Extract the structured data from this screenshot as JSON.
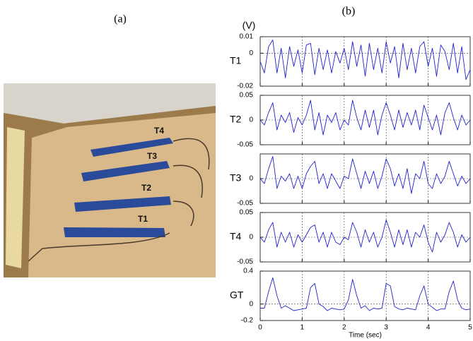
{
  "panel_a": {
    "label": "(a)",
    "sensor_labels": [
      "T4",
      "T3",
      "T2",
      "T1"
    ]
  },
  "panel_b": {
    "label": "(b)",
    "unit": "(V)"
  },
  "chart_data": [
    {
      "type": "line",
      "ylabel": "T1",
      "xlim": [
        0,
        5
      ],
      "xticks": [
        0,
        1,
        2,
        3,
        4,
        5
      ],
      "ylim": [
        -0.02,
        0.01
      ],
      "yticks": [
        -0.02,
        0,
        0.01
      ],
      "grid": true,
      "x": [
        0,
        0.1,
        0.2,
        0.3,
        0.4,
        0.5,
        0.6,
        0.7,
        0.8,
        0.9,
        1,
        1.1,
        1.2,
        1.3,
        1.4,
        1.5,
        1.6,
        1.7,
        1.8,
        1.9,
        2,
        2.1,
        2.2,
        2.3,
        2.4,
        2.5,
        2.6,
        2.7,
        2.8,
        2.9,
        3,
        3.1,
        3.2,
        3.3,
        3.4,
        3.5,
        3.6,
        3.7,
        3.8,
        3.9,
        4,
        4.1,
        4.2,
        4.3,
        4.4,
        4.5,
        4.6,
        4.7,
        4.8,
        4.9,
        5
      ],
      "series": [
        {
          "color": "#2020d0",
          "values": [
            -0.005,
            -0.012,
            0.004,
            0.008,
            -0.012,
            0.003,
            -0.015,
            0.004,
            -0.008,
            0.002,
            -0.012,
            0.005,
            0.006,
            -0.013,
            0.003,
            -0.01,
            0.002,
            -0.012,
            0.001,
            -0.006,
            0.003,
            -0.01,
            0.007,
            -0.008,
            0.005,
            -0.014,
            0.006,
            -0.01,
            0.003,
            -0.012,
            0.007,
            -0.006,
            0.004,
            -0.015,
            0.006,
            -0.01,
            0.003,
            -0.012,
            0.004,
            0.007,
            -0.008,
            0.003,
            -0.014,
            0.005,
            0.001,
            -0.01,
            0.006,
            -0.012,
            0.004,
            -0.016,
            -0.01
          ]
        }
      ]
    },
    {
      "type": "line",
      "ylabel": "T2",
      "xlim": [
        0,
        5
      ],
      "xticks": [
        0,
        1,
        2,
        3,
        4,
        5
      ],
      "ylim": [
        -0.05,
        0.05
      ],
      "yticks": [
        -0.05,
        0,
        0.05
      ],
      "grid": true,
      "x": [
        0,
        0.1,
        0.2,
        0.3,
        0.4,
        0.5,
        0.6,
        0.7,
        0.8,
        0.9,
        1,
        1.1,
        1.2,
        1.3,
        1.4,
        1.5,
        1.6,
        1.7,
        1.8,
        1.9,
        2,
        2.1,
        2.2,
        2.3,
        2.4,
        2.5,
        2.6,
        2.7,
        2.8,
        2.9,
        3,
        3.1,
        3.2,
        3.3,
        3.4,
        3.5,
        3.6,
        3.7,
        3.8,
        3.9,
        4,
        4.1,
        4.2,
        4.3,
        4.4,
        4.5,
        4.6,
        4.7,
        4.8,
        4.9,
        5
      ],
      "series": [
        {
          "color": "#2020d0",
          "values": [
            0,
            -0.01,
            0.015,
            0.035,
            -0.02,
            0.01,
            -0.005,
            0.015,
            -0.025,
            0.005,
            -0.01,
            0.01,
            0.04,
            -0.02,
            0.015,
            -0.03,
            0.01,
            -0.005,
            0.015,
            -0.02,
            0,
            -0.01,
            0.04,
            0.005,
            -0.02,
            0.02,
            -0.015,
            0.02,
            -0.03,
            0.01,
            0.035,
            0.01,
            -0.02,
            0.02,
            -0.015,
            0.015,
            -0.01,
            0.02,
            -0.02,
            0.03,
            0.005,
            -0.02,
            0.01,
            -0.03,
            0.015,
            0.035,
            0.005,
            -0.02,
            0.01,
            -0.01,
            0
          ]
        }
      ]
    },
    {
      "type": "line",
      "ylabel": "T3",
      "xlim": [
        0,
        5
      ],
      "xticks": [
        0,
        1,
        2,
        3,
        4,
        5
      ],
      "ylim": [
        -0.05,
        0.05
      ],
      "yticks": [
        -0.05,
        0
      ],
      "grid": true,
      "x": [
        0,
        0.1,
        0.2,
        0.3,
        0.4,
        0.5,
        0.6,
        0.7,
        0.8,
        0.9,
        1,
        1.1,
        1.2,
        1.3,
        1.4,
        1.5,
        1.6,
        1.7,
        1.8,
        1.9,
        2,
        2.1,
        2.2,
        2.3,
        2.4,
        2.5,
        2.6,
        2.7,
        2.8,
        2.9,
        3,
        3.1,
        3.2,
        3.3,
        3.4,
        3.5,
        3.6,
        3.7,
        3.8,
        3.9,
        4,
        4.1,
        4.2,
        4.3,
        4.4,
        4.5,
        4.6,
        4.7,
        4.8,
        4.9,
        5
      ],
      "series": [
        {
          "color": "#2020d0",
          "values": [
            0,
            -0.01,
            0.02,
            0.045,
            -0.02,
            0.005,
            -0.005,
            0.01,
            -0.02,
            0.005,
            -0.02,
            0.01,
            0.025,
            0.035,
            -0.01,
            0.01,
            -0.02,
            0.01,
            -0.005,
            -0.02,
            0.005,
            0,
            0.04,
            0.01,
            -0.02,
            0.015,
            -0.01,
            0.015,
            -0.02,
            0.005,
            0.04,
            0.02,
            -0.015,
            0.01,
            -0.02,
            0.02,
            -0.03,
            0.01,
            0,
            0.035,
            -0.01,
            -0.02,
            0.01,
            -0.01,
            0.005,
            0.035,
            0.01,
            -0.015,
            0.005,
            -0.01,
            0
          ]
        }
      ]
    },
    {
      "type": "line",
      "ylabel": "T4",
      "xlim": [
        0,
        5
      ],
      "xticks": [
        0,
        1,
        2,
        3,
        4,
        5
      ],
      "ylim": [
        -0.05,
        0.05
      ],
      "yticks": [
        -0.05,
        0,
        0.05
      ],
      "grid": true,
      "x": [
        0,
        0.1,
        0.2,
        0.3,
        0.4,
        0.5,
        0.6,
        0.7,
        0.8,
        0.9,
        1,
        1.1,
        1.2,
        1.3,
        1.4,
        1.5,
        1.6,
        1.7,
        1.8,
        1.9,
        2,
        2.1,
        2.2,
        2.3,
        2.4,
        2.5,
        2.6,
        2.7,
        2.8,
        2.9,
        3,
        3.1,
        3.2,
        3.3,
        3.4,
        3.5,
        3.6,
        3.7,
        3.8,
        3.9,
        4,
        4.1,
        4.2,
        4.3,
        4.4,
        4.5,
        4.6,
        4.7,
        4.8,
        4.9,
        5
      ],
      "series": [
        {
          "color": "#2020d0",
          "values": [
            0,
            -0.01,
            0.015,
            0.03,
            -0.02,
            0.01,
            -0.01,
            0.01,
            -0.02,
            0.005,
            -0.01,
            0.005,
            0.02,
            0.025,
            -0.01,
            0.01,
            -0.02,
            0.01,
            -0.01,
            -0.015,
            0,
            -0.005,
            0.03,
            0.01,
            -0.02,
            0.015,
            -0.01,
            0.01,
            -0.02,
            0,
            0.035,
            0.01,
            -0.02,
            0.015,
            -0.015,
            0.015,
            -0.02,
            0.01,
            0,
            0.025,
            -0.01,
            -0.03,
            0.01,
            -0.01,
            0.005,
            0.03,
            0.01,
            -0.02,
            0.005,
            -0.01,
            0
          ]
        }
      ]
    },
    {
      "type": "line",
      "ylabel": "GT",
      "xlabel": "Time (sec)",
      "xlim": [
        0,
        5
      ],
      "xticks": [
        0,
        1,
        2,
        3,
        4,
        5
      ],
      "ylim": [
        -0.2,
        0.4
      ],
      "yticks": [
        -0.2,
        0,
        0.4
      ],
      "grid": true,
      "x": [
        0,
        0.1,
        0.2,
        0.3,
        0.4,
        0.5,
        0.6,
        0.7,
        0.8,
        0.9,
        1,
        1.1,
        1.2,
        1.3,
        1.4,
        1.5,
        1.6,
        1.7,
        1.8,
        1.9,
        2,
        2.1,
        2.2,
        2.3,
        2.4,
        2.5,
        2.6,
        2.7,
        2.8,
        2.9,
        3,
        3.1,
        3.2,
        3.3,
        3.4,
        3.5,
        3.6,
        3.7,
        3.8,
        3.9,
        4,
        4.1,
        4.2,
        4.3,
        4.4,
        4.5,
        4.6,
        4.7,
        4.8,
        4.9,
        5
      ],
      "series": [
        {
          "color": "#2020d0",
          "values": [
            -0.05,
            -0.05,
            0.15,
            0.32,
            0.1,
            -0.05,
            -0.02,
            -0.05,
            -0.08,
            -0.07,
            -0.06,
            -0.05,
            0.2,
            0.25,
            0,
            -0.03,
            -0.08,
            -0.05,
            -0.06,
            -0.07,
            -0.06,
            0.05,
            0.3,
            0.1,
            -0.05,
            -0.02,
            -0.08,
            -0.05,
            -0.06,
            -0.05,
            0.25,
            0.22,
            -0.03,
            -0.06,
            -0.07,
            -0.05,
            -0.06,
            -0.07,
            0.1,
            0.22,
            0,
            -0.04,
            -0.08,
            -0.06,
            -0.06,
            0.15,
            0.28,
            0.05,
            -0.05,
            -0.07,
            -0.06
          ]
        }
      ]
    }
  ]
}
